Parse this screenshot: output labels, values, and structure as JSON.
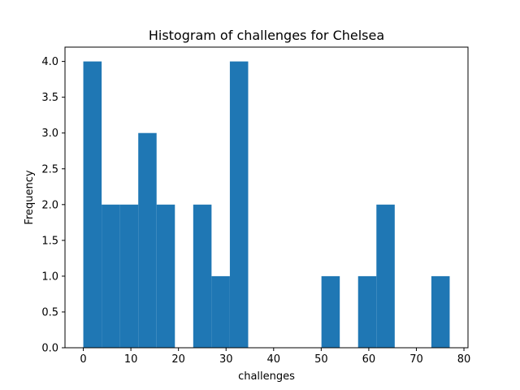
{
  "chart_data": {
    "type": "bar",
    "title": "Histogram of challenges for Chelsea",
    "xlabel": "challenges",
    "ylabel": "Frequency",
    "xlim": [
      -3.85,
      80.85
    ],
    "ylim": [
      0,
      4.2
    ],
    "xticks": [
      0,
      10,
      20,
      30,
      40,
      50,
      60,
      70,
      80
    ],
    "yticks": [
      0.0,
      0.5,
      1.0,
      1.5,
      2.0,
      2.5,
      3.0,
      3.5,
      4.0
    ],
    "xtick_labels": [
      "0",
      "10",
      "20",
      "30",
      "40",
      "50",
      "60",
      "70",
      "80"
    ],
    "ytick_labels": [
      "0.0",
      "0.5",
      "1.0",
      "1.5",
      "2.0",
      "2.5",
      "3.0",
      "3.5",
      "4.0"
    ],
    "bin_edges": [
      0,
      3.85,
      7.7,
      11.55,
      15.4,
      19.25,
      23.1,
      26.95,
      30.8,
      34.65,
      38.5,
      42.35,
      46.2,
      50.05,
      53.9,
      57.75,
      61.6,
      65.45,
      69.3,
      73.15,
      77.0
    ],
    "counts": [
      4,
      2,
      2,
      3,
      2,
      0,
      2,
      1,
      4,
      0,
      0,
      0,
      0,
      1,
      0,
      1,
      2,
      0,
      0,
      1
    ],
    "bar_color": "#1f77b4",
    "grid": false,
    "legend": "none"
  }
}
